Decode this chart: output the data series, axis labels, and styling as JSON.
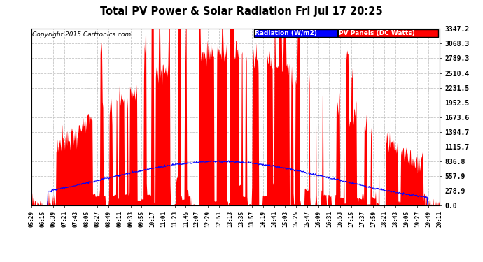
{
  "title": "Total PV Power & Solar Radiation Fri Jul 17 20:25",
  "copyright": "Copyright 2015 Cartronics.com",
  "ylabel_right": [
    "3347.2",
    "3068.3",
    "2789.3",
    "2510.4",
    "2231.5",
    "1952.5",
    "1673.6",
    "1394.7",
    "1115.7",
    "836.8",
    "557.9",
    "278.9",
    "0.0"
  ],
  "ymax": 3347.2,
  "ymin": 0.0,
  "bg_color": "#ffffff",
  "plot_bg_color": "#ffffff",
  "grid_color": "#c0c0c0",
  "bar_color": "#ff0000",
  "line_color": "#0000ff",
  "legend_radiation_bg": "#0000ff",
  "legend_pv_bg": "#ff0000",
  "legend_text_color": "#ffffff",
  "x_tick_labels": [
    "05:29",
    "06:15",
    "06:39",
    "07:21",
    "07:43",
    "08:05",
    "08:27",
    "08:49",
    "09:11",
    "09:33",
    "09:55",
    "10:17",
    "11:01",
    "11:23",
    "11:45",
    "12:07",
    "12:29",
    "12:51",
    "13:13",
    "13:35",
    "13:57",
    "14:19",
    "14:41",
    "15:03",
    "15:25",
    "15:47",
    "16:09",
    "16:31",
    "16:53",
    "17:15",
    "17:37",
    "17:59",
    "18:21",
    "18:43",
    "19:05",
    "19:27",
    "19:49",
    "20:11"
  ],
  "n_points": 760,
  "seed": 99
}
